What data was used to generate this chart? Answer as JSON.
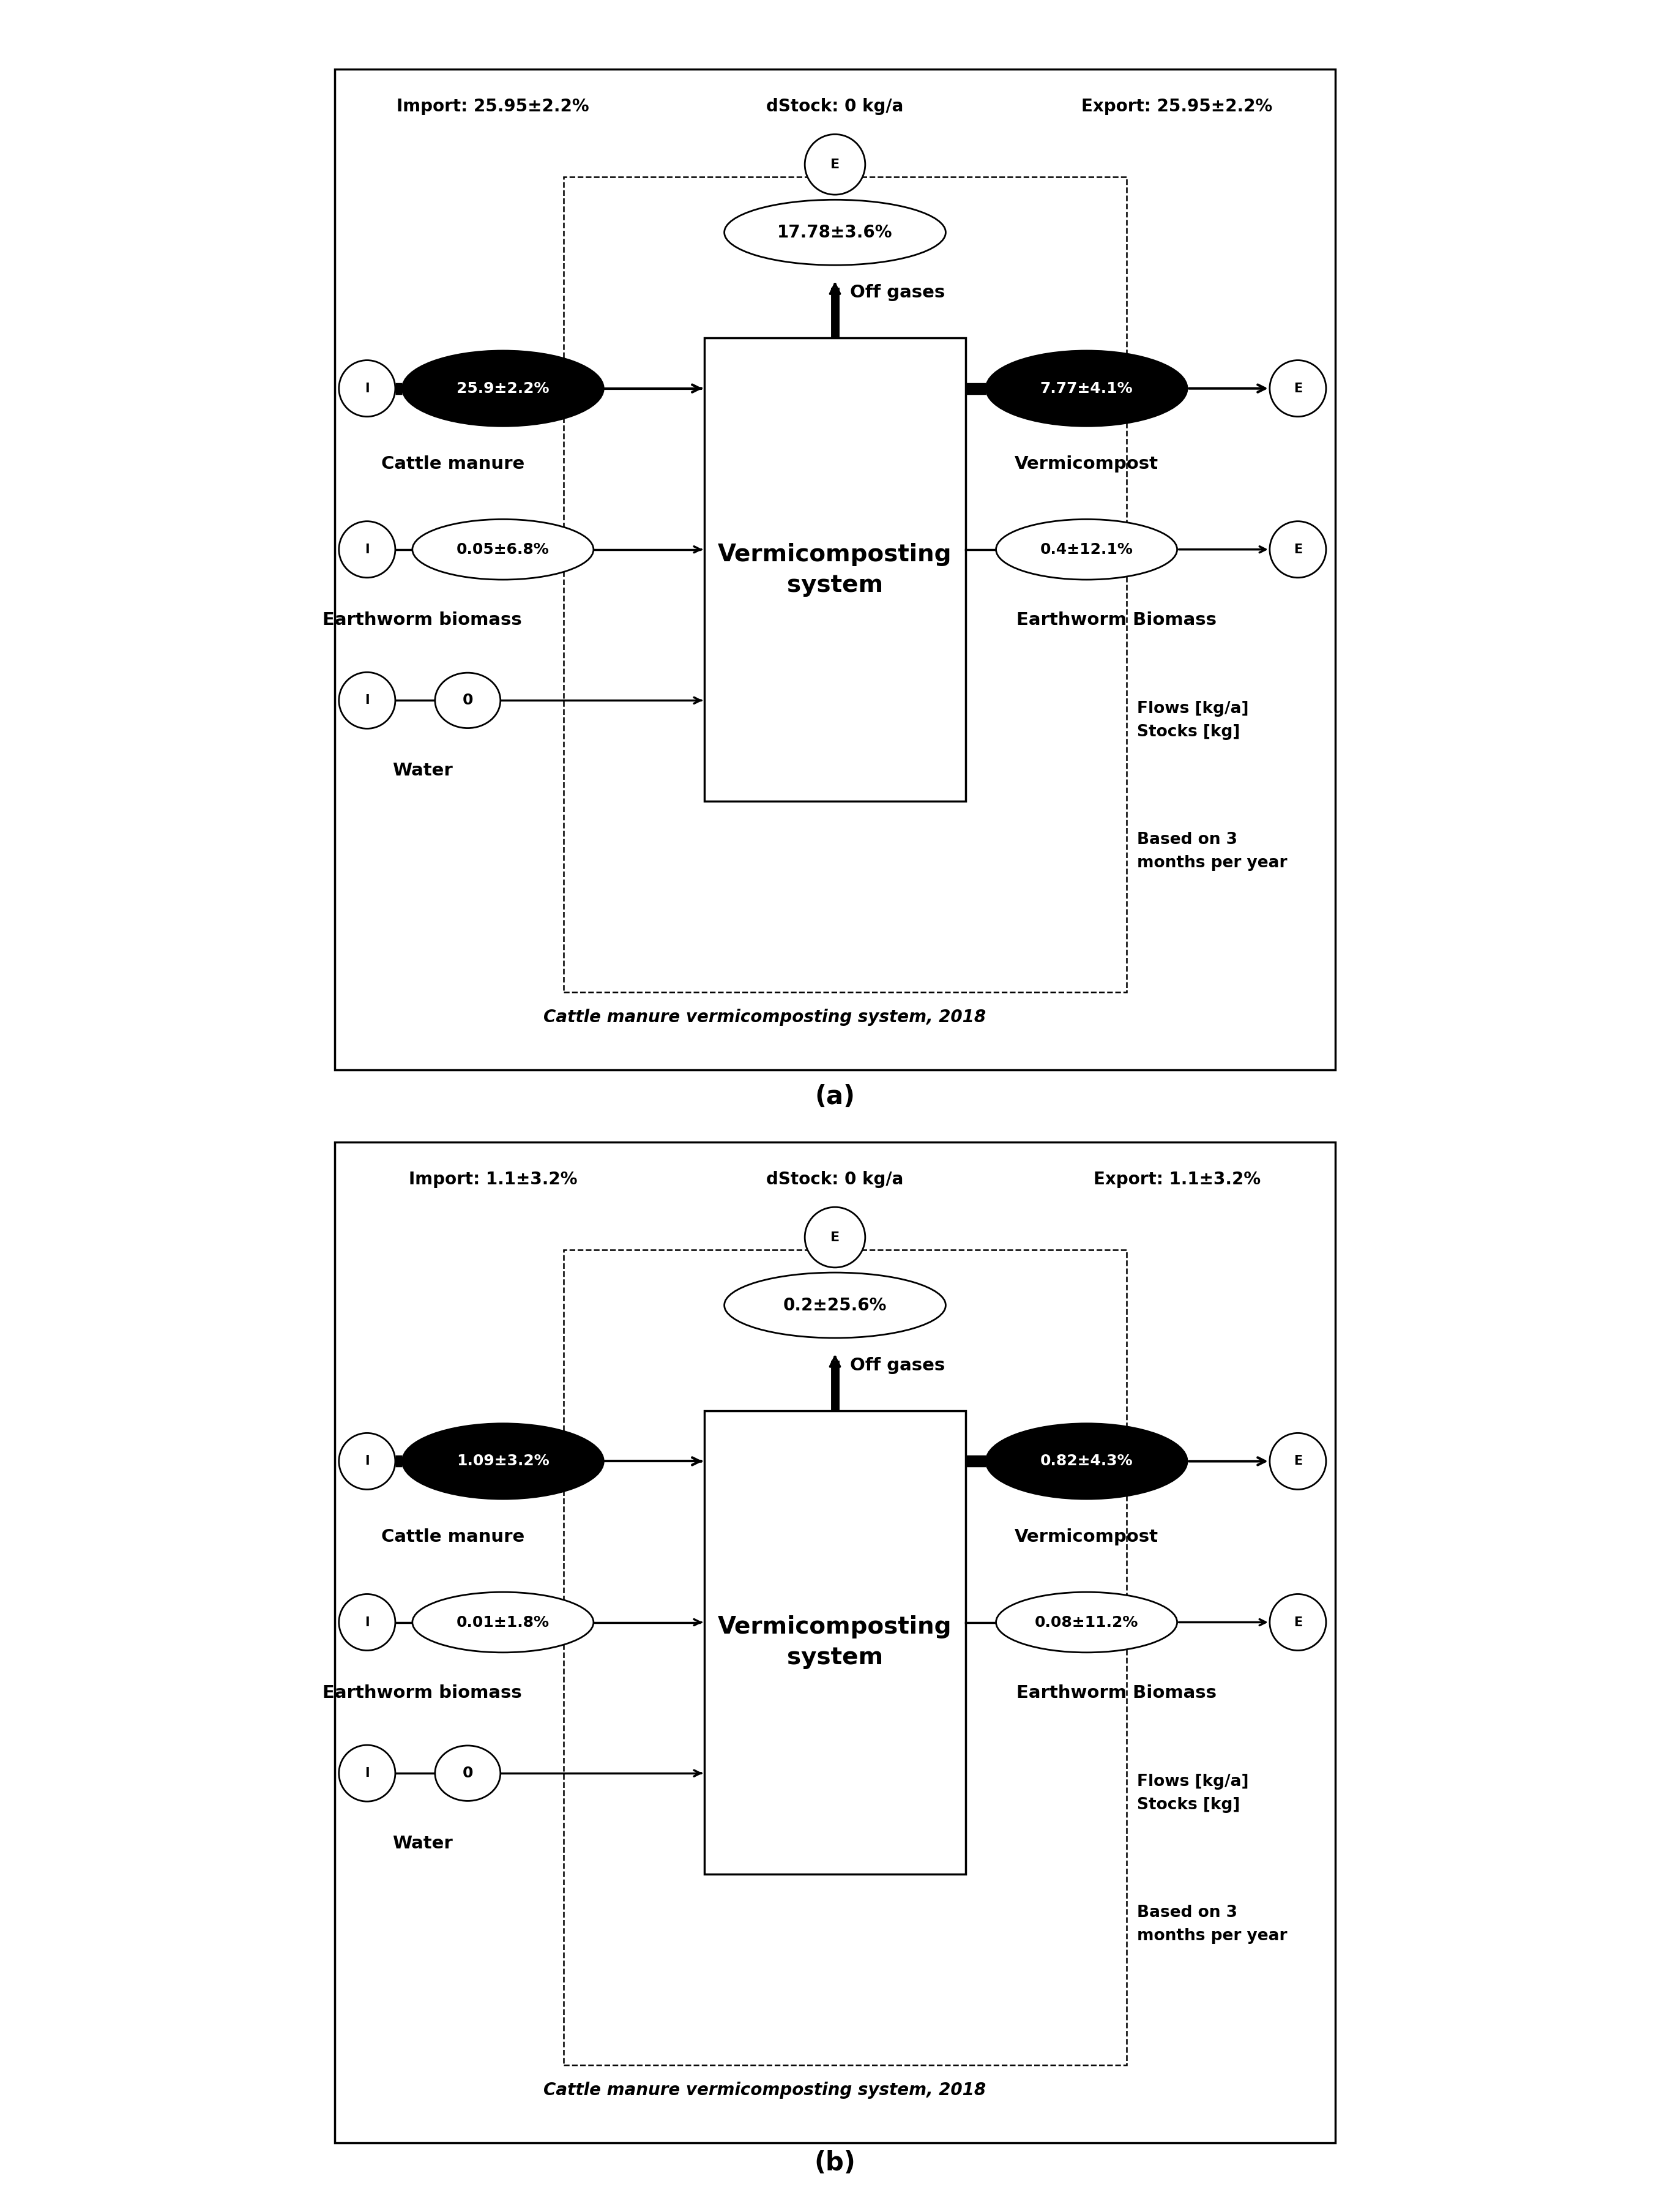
{
  "panel_a": {
    "title_import": "Import: 25.95±2.2%",
    "title_dstock": "dStock: 0 kg/a",
    "title_export": "Export: 25.95±2.2%",
    "offgas_label": "17.78±3.6%",
    "offgas_text": "Off gases",
    "cattle_flow": "25.9±2.2%",
    "cattle_label": "Cattle manure",
    "earthworm_in_flow": "0.05±6.8%",
    "earthworm_in_label": "Earthworm biomass",
    "water_flow": "0",
    "water_label": "Water",
    "vermicompost_flow": "7.77±4.1%",
    "vermicompost_label": "Vermicompost",
    "earthworm_out_flow": "0.4±12.1%",
    "earthworm_out_label": "Earthworm Biomass",
    "system_label": "Vermicomposting\nsystem",
    "flows_label": "Flows [kg/a]\nStocks [kg]",
    "based_label": "Based on 3\nmonths per year",
    "caption": "Cattle manure vermicomposting system, 2018",
    "panel_label": "(a)"
  },
  "panel_b": {
    "title_import": "Import: 1.1±3.2%",
    "title_dstock": "dStock: 0 kg/a",
    "title_export": "Export: 1.1±3.2%",
    "offgas_label": "0.2±25.6%",
    "offgas_text": "Off gases",
    "cattle_flow": "1.09±3.2%",
    "cattle_label": "Cattle manure",
    "earthworm_in_flow": "0.01±1.8%",
    "earthworm_in_label": "Earthworm biomass",
    "water_flow": "0",
    "water_label": "Water",
    "vermicompost_flow": "0.82±4.3%",
    "vermicompost_label": "Vermicompost",
    "earthworm_out_flow": "0.08±11.2%",
    "earthworm_out_label": "Earthworm Biomass",
    "system_label": "Vermicomposting\nsystem",
    "flows_label": "Flows [kg/a]\nStocks [kg]",
    "based_label": "Based on 3\nmonths per year",
    "caption": "Cattle manure vermicomposting system, 2018",
    "panel_label": "(b)"
  }
}
